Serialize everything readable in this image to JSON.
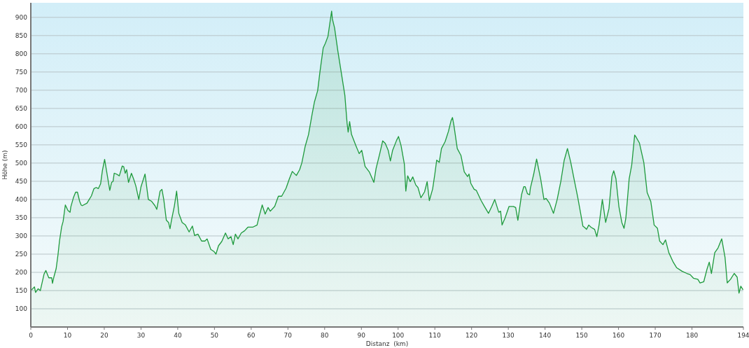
{
  "chart_data": {
    "type": "area",
    "xlabel": "Distanz  (km)",
    "ylabel": "Höhe (m)",
    "xlim": [
      0,
      194
    ],
    "ylim": [
      50,
      940
    ],
    "xticks": [
      0,
      10,
      20,
      30,
      40,
      50,
      60,
      70,
      80,
      90,
      100,
      110,
      120,
      130,
      140,
      150,
      160,
      170,
      180,
      194
    ],
    "yticks": [
      100,
      150,
      200,
      250,
      300,
      350,
      400,
      450,
      500,
      550,
      600,
      650,
      700,
      750,
      800,
      850,
      900
    ],
    "grid": "y",
    "series": [
      {
        "color": "#1e9a3c",
        "x": [
          0,
          0.5,
          1,
          1.3,
          2,
          2.6,
          3.6,
          4.1,
          4.7,
          4.9,
          5.7,
          5.9,
          6.3,
          6.9,
          7.4,
          7.8,
          8.4,
          8.8,
          9.4,
          10.1,
          10.7,
          10.9,
          11.6,
          12.2,
          12.7,
          13.3,
          13.7,
          14.0,
          15.3,
          15.9,
          16.5,
          17.2,
          17.8,
          18.4,
          19.0,
          19.5,
          20.1,
          20.6,
          21.5,
          22.0,
          22.4,
          22.7,
          23.3,
          24.1,
          24.9,
          25.3,
          25.7,
          26.1,
          26.6,
          27.4,
          28.0,
          28.6,
          29.4,
          30.0,
          31.1,
          32.0,
          32.9,
          33.8,
          34.3,
          35.2,
          35.7,
          36.2,
          36.9,
          37.5,
          37.9,
          38.3,
          39.1,
          39.7,
          40.3,
          41.2,
          42.1,
          43.1,
          44.0,
          44.6,
          45.5,
          46.5,
          47.4,
          48.0,
          49.0,
          49.9,
          50.4,
          51.1,
          52.0,
          53.0,
          53.7,
          54.5,
          55.1,
          55.7,
          56.4,
          57.3,
          58.2,
          59.1,
          60.4,
          61.6,
          62.2,
          63.0,
          63.8,
          64.6,
          65.2,
          66.4,
          67.4,
          68.3,
          69.5,
          70.4,
          71.2,
          72.3,
          73.2,
          73.8,
          74.7,
          75.6,
          76.6,
          77.2,
          78.1,
          78.7,
          79.6,
          80.2,
          80.9,
          81.5,
          81.9,
          82.1,
          82.7,
          83.6,
          84.5,
          85.5,
          86.1,
          86.4,
          86.8,
          87.3,
          88.5,
          89.4,
          90.1,
          91.0,
          92.2,
          93.4,
          94.0,
          95.0,
          95.8,
          96.5,
          97.3,
          97.9,
          98.5,
          99.6,
          100.1,
          100.8,
          101.7,
          102.1,
          102.6,
          103.3,
          104.0,
          104.8,
          105.4,
          106.2,
          107.2,
          107.9,
          108.5,
          109.4,
          110.0,
          110.5,
          111.2,
          111.8,
          112.8,
          113.7,
          114.4,
          114.8,
          115.2,
          116.1,
          117.1,
          118.0,
          118.9,
          119.3,
          119.8,
          120.7,
          121.3,
          122.6,
          123.5,
          124.6,
          125.5,
          126.3,
          127.4,
          127.9,
          128.3,
          129.1,
          130.2,
          131.4,
          132.0,
          132.6,
          133.6,
          134.2,
          134.6,
          135.2,
          135.8,
          136.0,
          136.9,
          137.7,
          138.8,
          139.7,
          140.3,
          141.2,
          142.3,
          143.3,
          144.3,
          145.2,
          146.1,
          147.0,
          148.0,
          148.9,
          149.8,
          150.3,
          150.7,
          151.3,
          151.9,
          152.5,
          153.5,
          154.1,
          154.7,
          155.6,
          156.5,
          157.4,
          158.2,
          158.7,
          159.3,
          160.1,
          160.9,
          161.5,
          162.0,
          162.9,
          163.6,
          164.4,
          164.8,
          165.7,
          166.9,
          167.8,
          168.8,
          169.7,
          170.6,
          171.2,
          172.1,
          172.8,
          173.7,
          174.9,
          175.8,
          177.3,
          178.6,
          179.5,
          180.4,
          181.6,
          182.2,
          183.2,
          184.1,
          184.7,
          185.3,
          186.2,
          187.1,
          188.1,
          189.0,
          189.6,
          190.5,
          191.5,
          192.3,
          192.8,
          193.3,
          193.9
        ],
        "values": [
          150,
          155,
          160,
          145,
          155,
          150,
          195,
          205,
          190,
          185,
          185,
          170,
          188,
          210,
          248,
          285,
          325,
          340,
          385,
          370,
          365,
          380,
          405,
          420,
          420,
          395,
          385,
          383,
          390,
          400,
          410,
          430,
          433,
          430,
          443,
          480,
          510,
          480,
          425,
          447,
          450,
          472,
          470,
          465,
          492,
          490,
          472,
          482,
          447,
          472,
          456,
          437,
          400,
          435,
          470,
          400,
          395,
          383,
          373,
          423,
          428,
          400,
          343,
          337,
          320,
          343,
          383,
          423,
          362,
          337,
          330,
          311,
          327,
          301,
          305,
          286,
          286,
          292,
          263,
          257,
          250,
          273,
          285,
          308,
          292,
          298,
          276,
          305,
          292,
          308,
          314,
          324,
          324,
          330,
          355,
          385,
          360,
          378,
          368,
          381,
          409,
          409,
          431,
          457,
          477,
          466,
          482,
          501,
          546,
          578,
          635,
          667,
          699,
          749,
          816,
          829,
          848,
          890,
          917,
          896,
          871,
          807,
          750,
          686,
          610,
          585,
          614,
          579,
          548,
          526,
          535,
          491,
          475,
          447,
          485,
          526,
          561,
          554,
          535,
          506,
          535,
          563,
          573,
          548,
          497,
          423,
          465,
          449,
          462,
          440,
          433,
          405,
          421,
          449,
          397,
          429,
          470,
          508,
          502,
          540,
          559,
          587,
          616,
          625,
          603,
          540,
          521,
          476,
          463,
          470,
          444,
          428,
          425,
          397,
          381,
          362,
          381,
          400,
          365,
          368,
          330,
          349,
          381,
          381,
          378,
          343,
          413,
          435,
          435,
          416,
          413,
          431,
          469,
          511,
          457,
          400,
          403,
          390,
          362,
          400,
          450,
          507,
          540,
          502,
          451,
          406,
          356,
          327,
          324,
          318,
          330,
          324,
          318,
          298,
          330,
          400,
          337,
          375,
          463,
          479,
          457,
          381,
          337,
          321,
          349,
          457,
          495,
          577,
          571,
          555,
          501,
          419,
          394,
          330,
          321,
          286,
          276,
          289,
          254,
          228,
          213,
          203,
          197,
          194,
          184,
          181,
          171,
          174,
          209,
          228,
          197,
          254,
          267,
          292,
          241,
          171,
          181,
          197,
          187,
          143,
          162,
          152
        ]
      }
    ]
  }
}
